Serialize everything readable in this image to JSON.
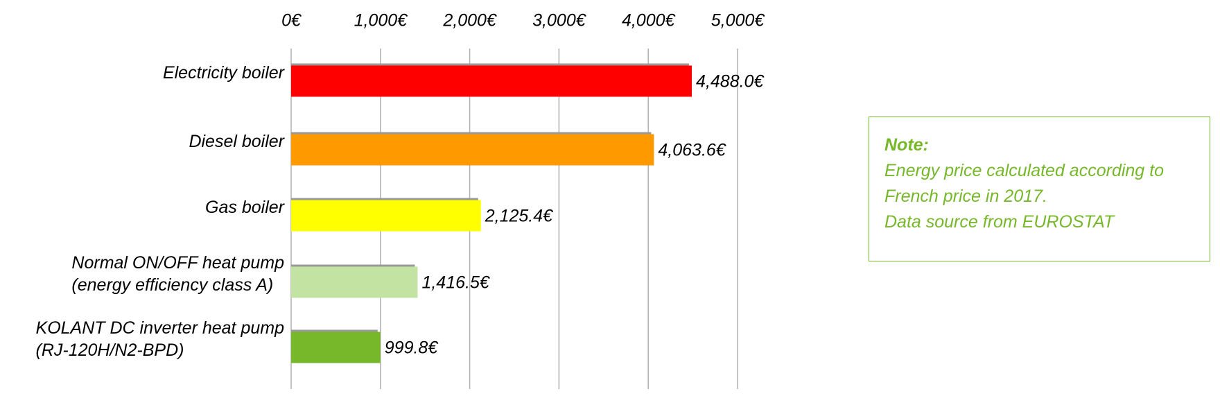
{
  "chart_data": {
    "type": "bar",
    "orientation": "horizontal",
    "categories": [
      "Electricity boiler",
      "Diesel boiler",
      "Gas boiler",
      "Normal ON/OFF heat pump\n(energy efficiency class A)",
      "KOLANT DC inverter heat pump\n(RJ-120H/N2-BPD)"
    ],
    "values": [
      4488.0,
      4063.6,
      2125.4,
      1416.5,
      999.8
    ],
    "value_labels": [
      "4,488.0€",
      "4,063.6€",
      "2,125.4€",
      "1,416.5€",
      "999.8€"
    ],
    "colors": [
      "#ff0000",
      "#ff9900",
      "#ffff00",
      "#c3e3a3",
      "#76b82a"
    ],
    "xlim": [
      0,
      5000
    ],
    "xticks": [
      {
        "value": 0,
        "label": "0€"
      },
      {
        "value": 1000,
        "label": "1,000€"
      },
      {
        "value": 2000,
        "label": "2,000€"
      },
      {
        "value": 3000,
        "label": "3,000€"
      },
      {
        "value": 4000,
        "label": "4,000€"
      },
      {
        "value": 5000,
        "label": "5,000€"
      }
    ],
    "grid": true
  },
  "note": {
    "title": "Note:",
    "lines": [
      "Energy price calculated according to",
      "French price in 2017.",
      "Data source from EUROSTAT"
    ],
    "color": "#76b82a"
  }
}
